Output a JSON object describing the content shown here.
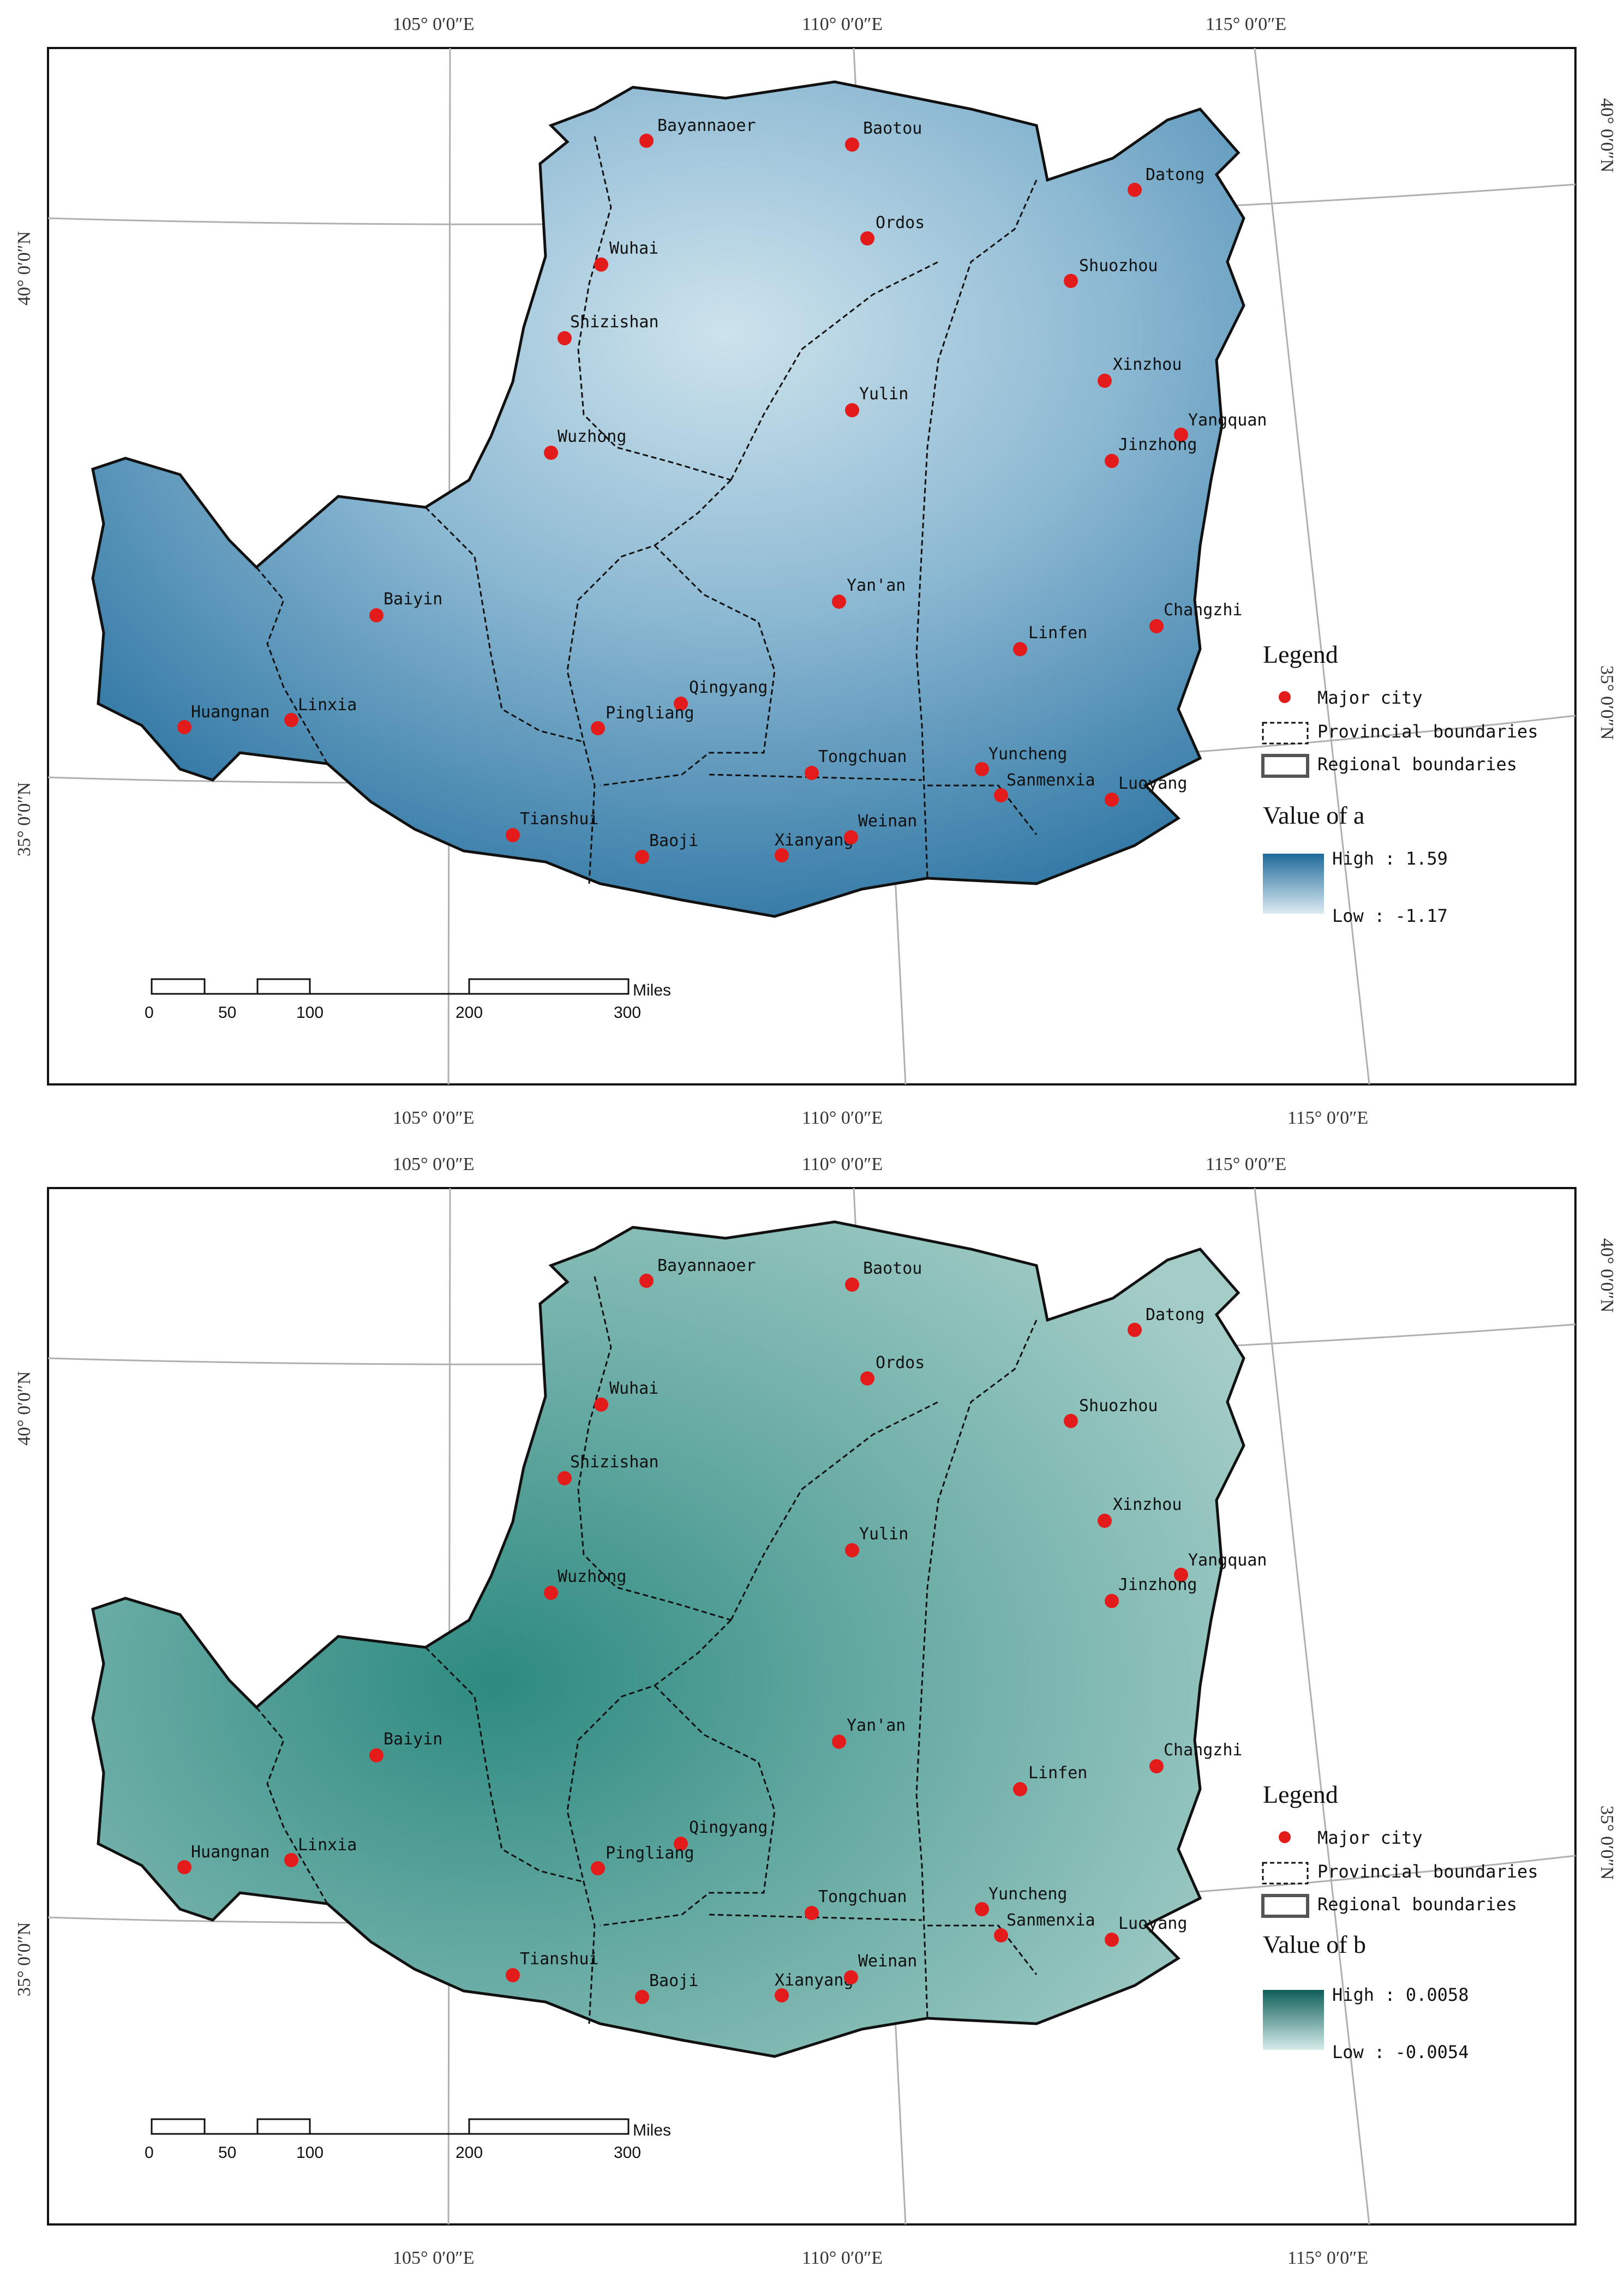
{
  "coordinates": {
    "top_lon": [
      "105° 0′0″E",
      "110° 0′0″E",
      "115° 0′0″E"
    ],
    "bottom_lon": [
      "105° 0′0″E",
      "110° 0′0″E",
      "115° 0′0″E"
    ],
    "lat": [
      "40° 0′0″N",
      "35° 0′0″N"
    ]
  },
  "cities": [
    {
      "name": "Bayannaoer"
    },
    {
      "name": "Baotou"
    },
    {
      "name": "Datong"
    },
    {
      "name": "Ordos"
    },
    {
      "name": "Wuhai"
    },
    {
      "name": "Shuozhou"
    },
    {
      "name": "Shizishan"
    },
    {
      "name": "Yulin"
    },
    {
      "name": "Xinzhou"
    },
    {
      "name": "Yangquan"
    },
    {
      "name": "Jinzhong"
    },
    {
      "name": "Wuzhong"
    },
    {
      "name": "Baiyin"
    },
    {
      "name": "Yan'an"
    },
    {
      "name": "Changzhi"
    },
    {
      "name": "Linfen"
    },
    {
      "name": "Qingyang"
    },
    {
      "name": "Huangnan"
    },
    {
      "name": "Linxia"
    },
    {
      "name": "Pingliang"
    },
    {
      "name": "Tongchuan"
    },
    {
      "name": "Yuncheng"
    },
    {
      "name": "Sanmenxia"
    },
    {
      "name": "Luoyang"
    },
    {
      "name": "Tianshui"
    },
    {
      "name": "Baoji"
    },
    {
      "name": "Xianyang"
    },
    {
      "name": "Weinan"
    }
  ],
  "legend": {
    "title": "Legend",
    "major_city": "Major city",
    "provincial": "Provincial boundaries",
    "regional": "Regional boundaries"
  },
  "panels": [
    {
      "value_title": "Value of a",
      "high_label": "High : 1.59",
      "low_label": "Low : -1.17",
      "color_high": "#1f6a9a",
      "color_low": "#dcebf1"
    },
    {
      "value_title": "Value of b",
      "high_label": "High : 0.0058",
      "low_label": "Low : -0.0054",
      "color_high": "#0e5e58",
      "color_low": "#d5ecea"
    }
  ],
  "scalebar": {
    "ticks": [
      "0",
      "50",
      "100",
      "200",
      "300"
    ],
    "unit": "Miles"
  }
}
